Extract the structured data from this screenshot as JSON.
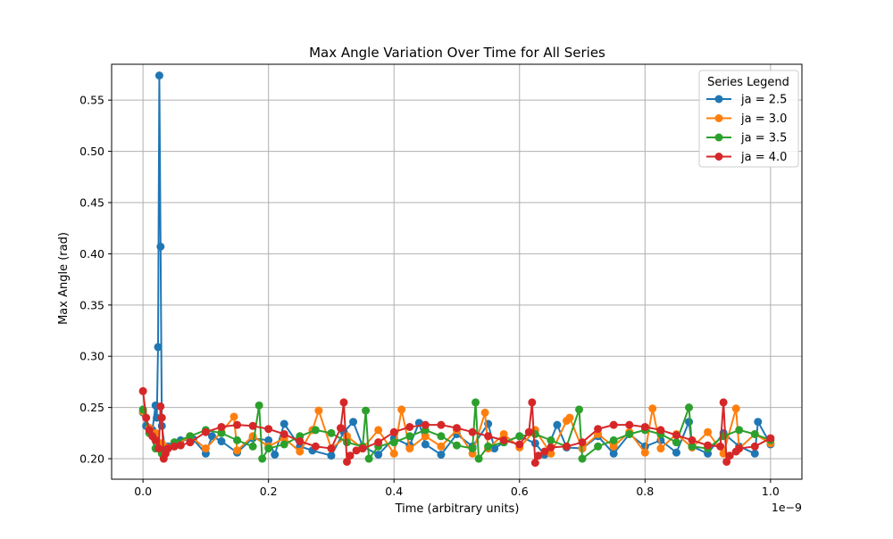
{
  "chart_data": {
    "type": "line",
    "title": "Max Angle Variation Over Time for All Series",
    "xlabel": "Time (arbitrary units)",
    "ylabel": "Max Angle (rad)",
    "x_offset_label": "1e−9",
    "x_scale": 1e-09,
    "xlim": [
      -0.05,
      1.05
    ],
    "ylim": [
      0.18,
      0.585
    ],
    "x_ticks": [
      0.0,
      0.2,
      0.4,
      0.6,
      0.8,
      1.0
    ],
    "x_tick_labels": [
      "0.0",
      "0.2",
      "0.4",
      "0.6",
      "0.8",
      "1.0"
    ],
    "y_ticks": [
      0.2,
      0.25,
      0.3,
      0.35,
      0.4,
      0.45,
      0.5,
      0.55
    ],
    "y_tick_labels": [
      "0.20",
      "0.25",
      "0.30",
      "0.35",
      "0.40",
      "0.45",
      "0.50",
      "0.55"
    ],
    "grid": true,
    "legend": {
      "title": "Series Legend",
      "position": "top-right"
    },
    "marker": "circle",
    "series": [
      {
        "name": "ja = 2.5",
        "color": "#1f77b4",
        "x": [
          0.0,
          0.005,
          0.01,
          0.015,
          0.02,
          0.022,
          0.024,
          0.026,
          0.028,
          0.03,
          0.035,
          0.04,
          0.05,
          0.06,
          0.08,
          0.1,
          0.11,
          0.125,
          0.15,
          0.175,
          0.2,
          0.21,
          0.225,
          0.25,
          0.27,
          0.3,
          0.32,
          0.335,
          0.35,
          0.375,
          0.4,
          0.425,
          0.44,
          0.45,
          0.475,
          0.5,
          0.525,
          0.55,
          0.56,
          0.575,
          0.6,
          0.625,
          0.64,
          0.66,
          0.675,
          0.7,
          0.725,
          0.75,
          0.775,
          0.8,
          0.825,
          0.85,
          0.87,
          0.875,
          0.9,
          0.925,
          0.95,
          0.975,
          0.98,
          1.0
        ],
        "y": [
          0.245,
          0.232,
          0.23,
          0.228,
          0.252,
          0.24,
          0.309,
          0.574,
          0.407,
          0.232,
          0.21,
          0.212,
          0.215,
          0.218,
          0.219,
          0.205,
          0.222,
          0.217,
          0.206,
          0.22,
          0.218,
          0.204,
          0.234,
          0.212,
          0.208,
          0.203,
          0.226,
          0.236,
          0.212,
          0.204,
          0.22,
          0.213,
          0.235,
          0.214,
          0.204,
          0.224,
          0.212,
          0.234,
          0.21,
          0.216,
          0.222,
          0.215,
          0.204,
          0.233,
          0.211,
          0.21,
          0.222,
          0.205,
          0.224,
          0.212,
          0.218,
          0.206,
          0.236,
          0.212,
          0.205,
          0.225,
          0.212,
          0.205,
          0.236,
          0.214
        ]
      },
      {
        "name": "ja = 3.0",
        "color": "#ff7f0e",
        "x": [
          0.0,
          0.01,
          0.02,
          0.03,
          0.05,
          0.075,
          0.1,
          0.125,
          0.145,
          0.15,
          0.175,
          0.2,
          0.225,
          0.25,
          0.27,
          0.28,
          0.3,
          0.325,
          0.35,
          0.375,
          0.4,
          0.412,
          0.425,
          0.45,
          0.475,
          0.5,
          0.525,
          0.545,
          0.55,
          0.575,
          0.6,
          0.625,
          0.65,
          0.675,
          0.68,
          0.7,
          0.725,
          0.75,
          0.775,
          0.8,
          0.812,
          0.825,
          0.85,
          0.875,
          0.9,
          0.925,
          0.945,
          0.95,
          0.975,
          1.0
        ],
        "y": [
          0.246,
          0.23,
          0.225,
          0.215,
          0.212,
          0.222,
          0.21,
          0.226,
          0.241,
          0.208,
          0.222,
          0.212,
          0.22,
          0.207,
          0.228,
          0.247,
          0.21,
          0.222,
          0.21,
          0.228,
          0.205,
          0.248,
          0.21,
          0.222,
          0.212,
          0.228,
          0.205,
          0.245,
          0.21,
          0.224,
          0.211,
          0.228,
          0.205,
          0.237,
          0.24,
          0.21,
          0.224,
          0.212,
          0.226,
          0.206,
          0.249,
          0.21,
          0.224,
          0.211,
          0.226,
          0.205,
          0.249,
          0.21,
          0.224,
          0.215
        ]
      },
      {
        "name": "ja = 3.5",
        "color": "#2ca02c",
        "x": [
          0.0,
          0.01,
          0.02,
          0.03,
          0.05,
          0.075,
          0.1,
          0.125,
          0.15,
          0.175,
          0.185,
          0.19,
          0.2,
          0.225,
          0.25,
          0.275,
          0.3,
          0.325,
          0.35,
          0.355,
          0.36,
          0.375,
          0.4,
          0.425,
          0.45,
          0.475,
          0.5,
          0.525,
          0.53,
          0.535,
          0.55,
          0.575,
          0.6,
          0.625,
          0.65,
          0.675,
          0.695,
          0.7,
          0.725,
          0.75,
          0.775,
          0.8,
          0.825,
          0.85,
          0.87,
          0.875,
          0.9,
          0.925,
          0.95,
          0.975,
          1.0
        ],
        "y": [
          0.248,
          0.225,
          0.21,
          0.205,
          0.216,
          0.222,
          0.228,
          0.225,
          0.218,
          0.212,
          0.252,
          0.2,
          0.21,
          0.214,
          0.222,
          0.228,
          0.225,
          0.216,
          0.212,
          0.247,
          0.2,
          0.212,
          0.216,
          0.222,
          0.228,
          0.222,
          0.213,
          0.21,
          0.255,
          0.2,
          0.212,
          0.216,
          0.222,
          0.224,
          0.218,
          0.212,
          0.248,
          0.2,
          0.212,
          0.218,
          0.224,
          0.228,
          0.224,
          0.216,
          0.25,
          0.212,
          0.21,
          0.222,
          0.228,
          0.224,
          0.218
        ]
      },
      {
        "name": "ja = 4.0",
        "color": "#d62728",
        "x": [
          0.0,
          0.005,
          0.01,
          0.015,
          0.02,
          0.025,
          0.028,
          0.03,
          0.033,
          0.036,
          0.04,
          0.05,
          0.06,
          0.075,
          0.1,
          0.125,
          0.15,
          0.175,
          0.2,
          0.225,
          0.25,
          0.275,
          0.3,
          0.315,
          0.32,
          0.325,
          0.33,
          0.34,
          0.35,
          0.375,
          0.4,
          0.425,
          0.45,
          0.475,
          0.5,
          0.525,
          0.55,
          0.575,
          0.6,
          0.615,
          0.62,
          0.625,
          0.63,
          0.64,
          0.65,
          0.675,
          0.7,
          0.725,
          0.75,
          0.775,
          0.8,
          0.825,
          0.85,
          0.875,
          0.9,
          0.92,
          0.925,
          0.93,
          0.935,
          0.945,
          0.95,
          0.975,
          1.0
        ],
        "y": [
          0.266,
          0.24,
          0.228,
          0.222,
          0.218,
          0.21,
          0.251,
          0.24,
          0.2,
          0.205,
          0.21,
          0.212,
          0.213,
          0.216,
          0.226,
          0.231,
          0.233,
          0.232,
          0.229,
          0.224,
          0.217,
          0.212,
          0.21,
          0.23,
          0.255,
          0.197,
          0.203,
          0.208,
          0.21,
          0.216,
          0.226,
          0.231,
          0.233,
          0.233,
          0.23,
          0.226,
          0.222,
          0.218,
          0.214,
          0.226,
          0.255,
          0.196,
          0.203,
          0.207,
          0.211,
          0.212,
          0.216,
          0.229,
          0.233,
          0.233,
          0.231,
          0.228,
          0.223,
          0.218,
          0.213,
          0.212,
          0.255,
          0.197,
          0.203,
          0.207,
          0.21,
          0.212,
          0.22
        ]
      }
    ]
  }
}
